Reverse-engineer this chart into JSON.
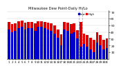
{
  "title": "Milwaukee Dew Point-Daily Hi/Lo",
  "ylim": [
    0,
    72
  ],
  "yticks": [
    10,
    20,
    30,
    40,
    50,
    60,
    70
  ],
  "ytick_labels": [
    "10",
    "20",
    "30",
    "40",
    "50",
    "60",
    "70"
  ],
  "background_color": "#ffffff",
  "grid_color": "#cccccc",
  "high_color": "#dd0000",
  "low_color": "#0000cc",
  "days": [
    1,
    2,
    3,
    4,
    5,
    6,
    7,
    8,
    9,
    10,
    11,
    12,
    13,
    14,
    15,
    16,
    17,
    18,
    19,
    20,
    21,
    22,
    23,
    24,
    25,
    26,
    27,
    28,
    29,
    30,
    31
  ],
  "highs": [
    55,
    52,
    53,
    56,
    57,
    54,
    55,
    55,
    53,
    56,
    56,
    55,
    54,
    53,
    50,
    44,
    37,
    55,
    54,
    52,
    53,
    43,
    55,
    38,
    36,
    31,
    28,
    40,
    36,
    28,
    30
  ],
  "lows": [
    44,
    40,
    42,
    46,
    48,
    44,
    46,
    46,
    42,
    48,
    48,
    46,
    44,
    42,
    38,
    32,
    20,
    44,
    42,
    38,
    40,
    30,
    18,
    22,
    18,
    14,
    10,
    24,
    20,
    14,
    16
  ],
  "vlines": [
    21.5,
    22.5
  ],
  "legend_high": "High",
  "legend_low": "Low"
}
